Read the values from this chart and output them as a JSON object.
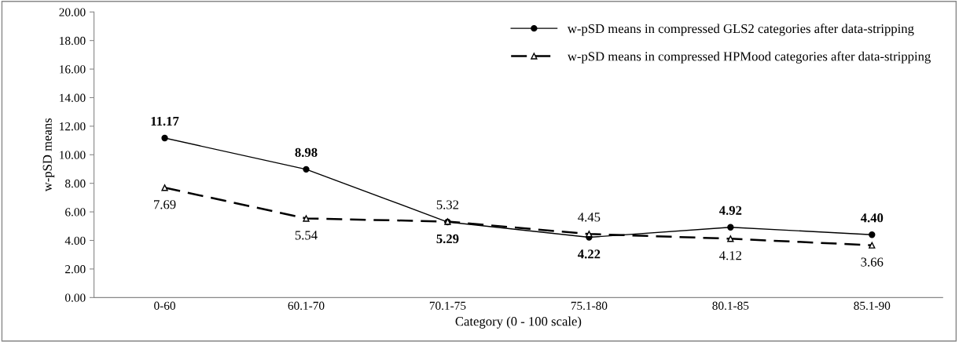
{
  "chart_data": {
    "type": "line",
    "xlabel": "Category (0 - 100 scale)",
    "ylabel": "w-pSD means",
    "categories": [
      "0-60",
      "60.1-70",
      "70.1-75",
      "75.1-80",
      "80.1-85",
      "85.1-90"
    ],
    "series": [
      {
        "name": "w-pSD means in compressed GLS2 categories after data-stripping",
        "color": "#000000",
        "marker": "circle",
        "line_style": "solid",
        "values": [
          11.17,
          8.98,
          5.29,
          4.22,
          4.92,
          4.4
        ],
        "value_labels": [
          "11.17",
          "8.98",
          "5.29",
          "4.22",
          "4.92",
          "4.40"
        ]
      },
      {
        "name": "w-pSD means in compressed HPMood categories after data-stripping",
        "color": "#000000",
        "marker": "triangle",
        "line_style": "dashed",
        "values": [
          7.69,
          5.54,
          5.32,
          4.45,
          4.12,
          3.66
        ],
        "value_labels": [
          "7.69",
          "5.54",
          "5.32",
          "4.45",
          "4.12",
          "3.66"
        ]
      }
    ],
    "ylim": [
      0,
      20
    ],
    "yticks": [
      {
        "value": 0,
        "label": "0.00"
      },
      {
        "value": 2,
        "label": "2.00"
      },
      {
        "value": 4,
        "label": "4.00"
      },
      {
        "value": 6,
        "label": "6.00"
      },
      {
        "value": 8,
        "label": "8.00"
      },
      {
        "value": 10,
        "label": "10.00"
      },
      {
        "value": 12,
        "label": "12.00"
      },
      {
        "value": 14,
        "label": "14.00"
      },
      {
        "value": 16,
        "label": "16.00"
      },
      {
        "value": 18,
        "label": "18.00"
      },
      {
        "value": 20,
        "label": "20.00"
      }
    ],
    "legend": "top right",
    "grid": false
  }
}
